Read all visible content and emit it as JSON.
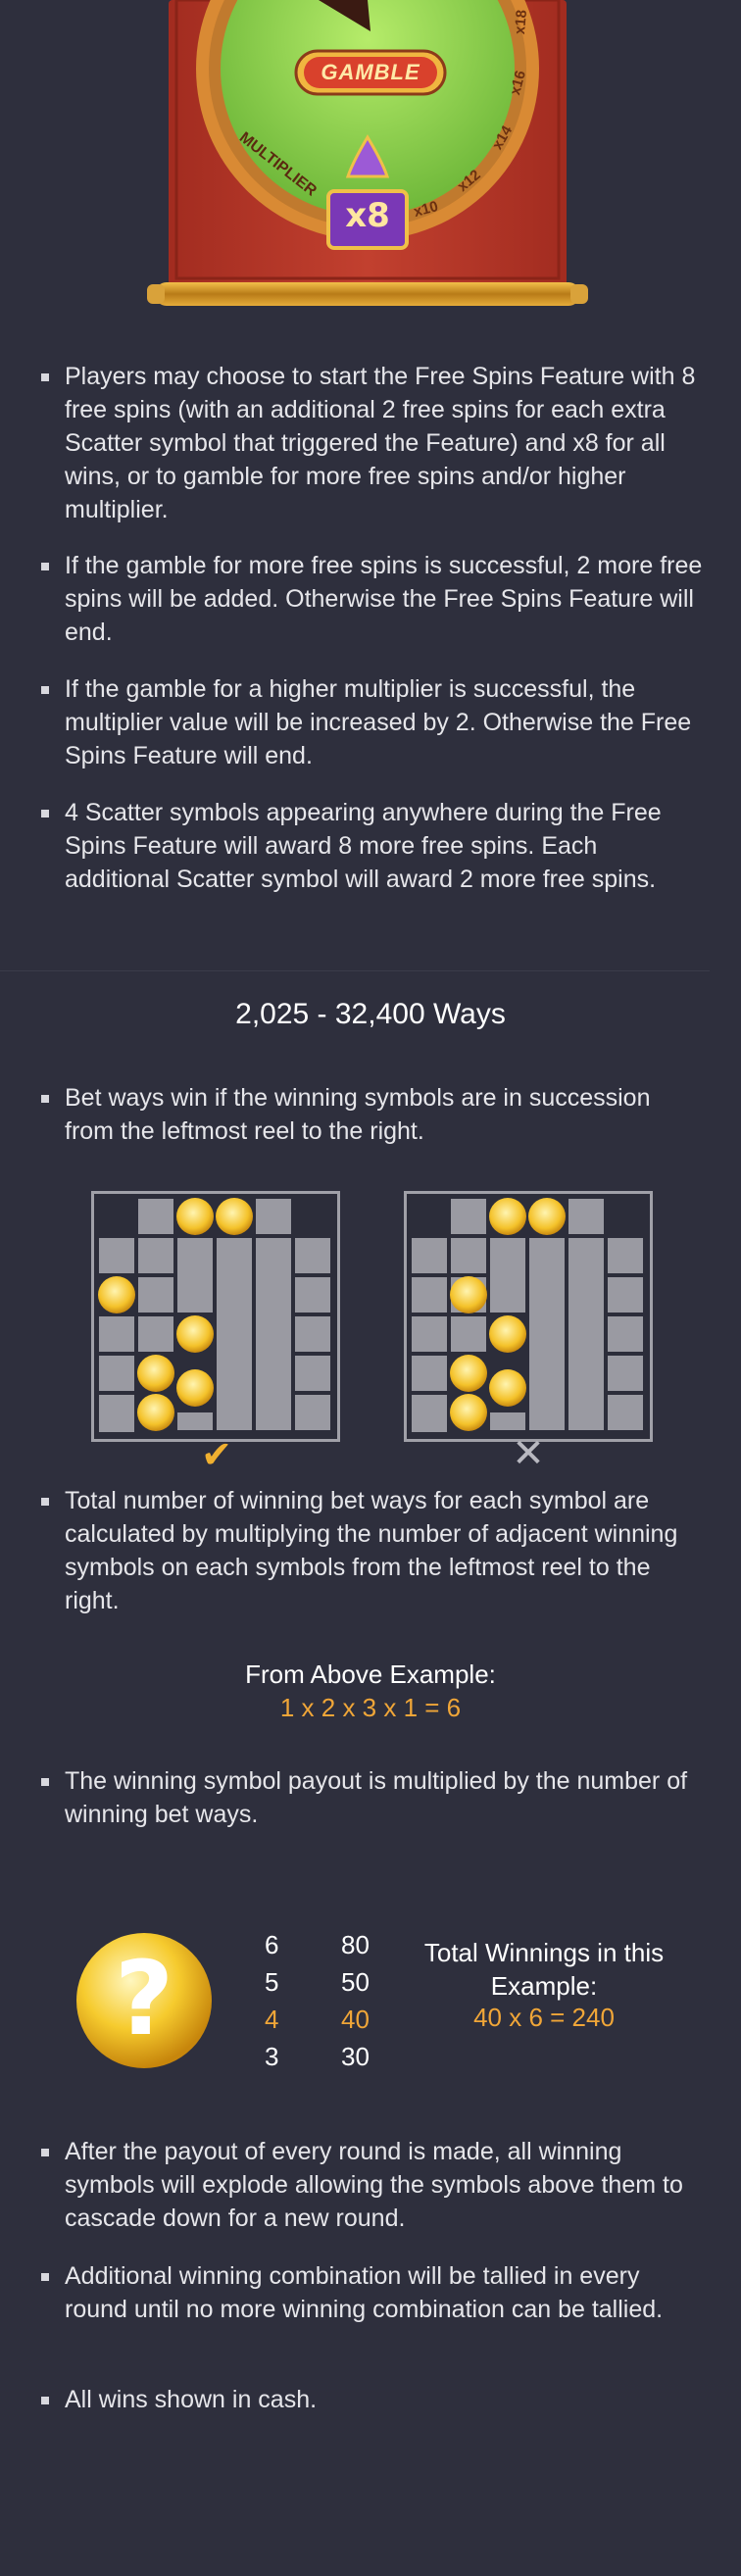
{
  "wheel": {
    "gamble_label": "GAMBLE",
    "multiplier_label": "MULTIPLIER",
    "badge_value": "x8",
    "ring_values": [
      "x10",
      "x12",
      "x14",
      "x16",
      "x18"
    ]
  },
  "bullets_top": [
    "Players may choose to start the Free Spins Feature with 8 free spins (with an additional 2 free spins for each extra Scatter symbol that triggered the Feature) and x8 for all wins, or to gamble for more free spins and/or higher multiplier.",
    "If the gamble for more free spins is successful, 2 more free spins will be added. Otherwise the Free Spins Feature will end.",
    "If the gamble for a higher multiplier is successful, the multiplier value will be increased by 2. Otherwise the Free Spins Feature will end.",
    "4 Scatter symbols appearing anywhere during the Free Spins Feature will award 8 more free spins. Each additional Scatter symbol will award 2 more free spins."
  ],
  "ways": {
    "title": "2,025 - 32,400 Ways",
    "bullet_1": "Bet ways win if the winning symbols are in succession from the leftmost reel to the right.",
    "bullet_2": "Total number of winning bet ways for each symbol are calculated by multiplying the number of adjacent winning symbols on each symbols from the leftmost reel to the right.",
    "example_title": "From Above Example:",
    "example_formula": "1 x 2 x 3 x 1 = 6",
    "bullet_3": "The winning symbol payout is multiplied by the number of winning bet ways.",
    "correct_mark": "✔",
    "wrong_mark": "✕"
  },
  "paytable": {
    "symbol_glyph": "?",
    "rows": [
      {
        "count": "6",
        "pay": "80",
        "highlight": false
      },
      {
        "count": "5",
        "pay": "50",
        "highlight": false
      },
      {
        "count": "4",
        "pay": "40",
        "highlight": true
      },
      {
        "count": "3",
        "pay": "30",
        "highlight": false
      }
    ],
    "total_title": "Total Winnings in this Example:",
    "total_formula": "40 x 6 = 240"
  },
  "bullets_bottom": [
    "After the payout of every round is made, all winning symbols will explode allowing the symbols above them to cascade down for a new round.",
    "Additional winning combination will be tallied in every round until no more winning combination can be tallied.",
    "All wins shown in cash."
  ],
  "colors": {
    "background": "#2e2f3d",
    "accent_orange": "#f0a638",
    "scroll_red": "#b8382b",
    "wheel_green": "#8fd14f"
  }
}
